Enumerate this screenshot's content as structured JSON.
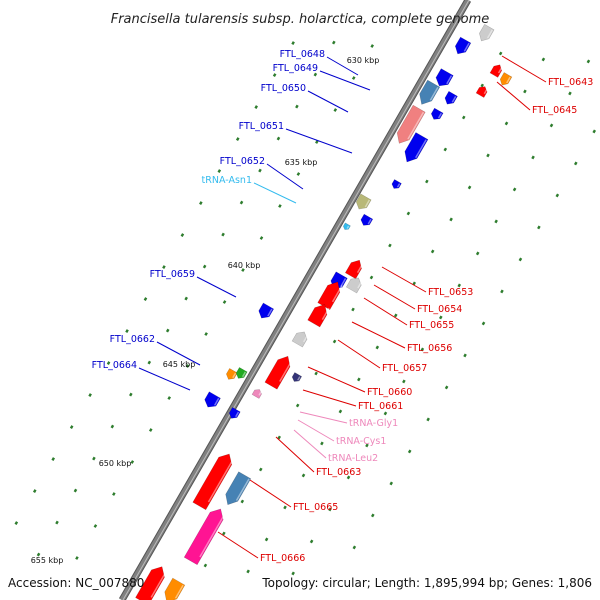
{
  "title": "Francisella tularensis subsp. holarctica, complete genome",
  "footer": {
    "accession": "Accession: NC_007880",
    "summary": "Topology: circular; Length: 1,895,994 bp; Genes: 1,806"
  },
  "colors": {
    "backbone": "#808080",
    "plus_label": "#0000cc",
    "minus_label": "#dd0000",
    "trna_plus": "#33bbee",
    "trna_minus": "#ee88bb",
    "tick": "#2e7d2e"
  },
  "scale_ticks": [
    "630 kbp",
    "635 kbp",
    "640 kbp",
    "645 kbp",
    "650 kbp",
    "655 kbp"
  ],
  "labels": {
    "plus": [
      "FTL_0648",
      "FTL_0649",
      "FTL_0650",
      "FTL_0651",
      "FTL_0652",
      "tRNA-Asn1",
      "FTL_0659",
      "FTL_0662",
      "FTL_0664"
    ],
    "minus": [
      "FTL_0643",
      "FTL_0645",
      "FTL_0653",
      "FTL_0654",
      "FTL_0655",
      "FTL_0656",
      "FTL_0657",
      "FTL_0660",
      "FTL_0661",
      "tRNA-Gly1",
      "tRNA-Cys1",
      "tRNA-Leu2",
      "FTL_0663",
      "FTL_0665",
      "FTL_0666"
    ]
  }
}
